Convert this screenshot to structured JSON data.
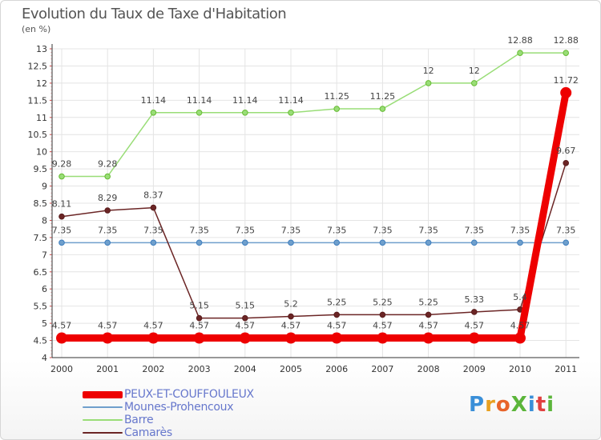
{
  "title": "Evolution du Taux de Taxe d'Habitation",
  "unit": "(en %)",
  "logo": {
    "text": "ProXiti",
    "colors": [
      "#3a8fd8",
      "#e8a020",
      "#e8642a",
      "#5bb53a",
      "#3a8fd8",
      "#e04040",
      "#5bb53a"
    ]
  },
  "chart_data": {
    "type": "line",
    "title": "Evolution du Taux de Taxe d'Habitation",
    "ylabel": "(en %)",
    "xlabel": "",
    "x": [
      "2000",
      "2001",
      "2002",
      "2003",
      "2004",
      "2005",
      "2006",
      "2007",
      "2008",
      "2009",
      "2010",
      "2011"
    ],
    "ylim": [
      4,
      13
    ],
    "yticks": [
      "4",
      "4.5",
      "5",
      "5.5",
      "6",
      "6.5",
      "7",
      "7.5",
      "8",
      "8.5",
      "9",
      "9.5",
      "10",
      "10.5",
      "11",
      "11.5",
      "12",
      "12.5",
      "13"
    ],
    "grid": true,
    "legend_position": "bottom-left",
    "series": [
      {
        "name": "PEUX-ET-COUFFOULEUX",
        "color": "#ee0000",
        "values": [
          4.57,
          4.57,
          4.57,
          4.57,
          4.57,
          4.57,
          4.57,
          4.57,
          4.57,
          4.57,
          4.57,
          11.72
        ],
        "labels": [
          "4.57",
          "4.57",
          "4.57",
          "4.57",
          "4.57",
          "4.57",
          "4.57",
          "4.57",
          "4.57",
          "4.57",
          "4.57",
          "11.72"
        ]
      },
      {
        "name": "Mounes-Prohencoux",
        "color": "#6f9fcc",
        "values": [
          7.35,
          7.35,
          7.35,
          7.35,
          7.35,
          7.35,
          7.35,
          7.35,
          7.35,
          7.35,
          7.35,
          7.35
        ],
        "labels": [
          "7.35",
          "7.35",
          "7.35",
          "7.35",
          "7.35",
          "7.35",
          "7.35",
          "7.35",
          "7.35",
          "7.35",
          "7.35",
          "7.35"
        ]
      },
      {
        "name": "Barre",
        "color": "#99dd77",
        "values": [
          9.28,
          9.28,
          11.14,
          11.14,
          11.14,
          11.14,
          11.25,
          11.25,
          12,
          12,
          12.88,
          12.88
        ],
        "labels": [
          "9.28",
          "9.28",
          "11.14",
          "11.14",
          "11.14",
          "11.14",
          "11.25",
          "11.25",
          "12",
          "12",
          "12.88",
          "12.88"
        ]
      },
      {
        "name": "Camarès",
        "color": "#6b2525",
        "values": [
          8.11,
          8.29,
          8.37,
          5.15,
          5.15,
          5.2,
          5.25,
          5.25,
          5.25,
          5.33,
          5.4,
          9.67
        ],
        "labels": [
          "8.11",
          "8.29",
          "8.37",
          "5.15",
          "5.15",
          "5.2",
          "5.25",
          "5.25",
          "5.25",
          "5.33",
          "5.4",
          "9.67"
        ]
      }
    ]
  }
}
